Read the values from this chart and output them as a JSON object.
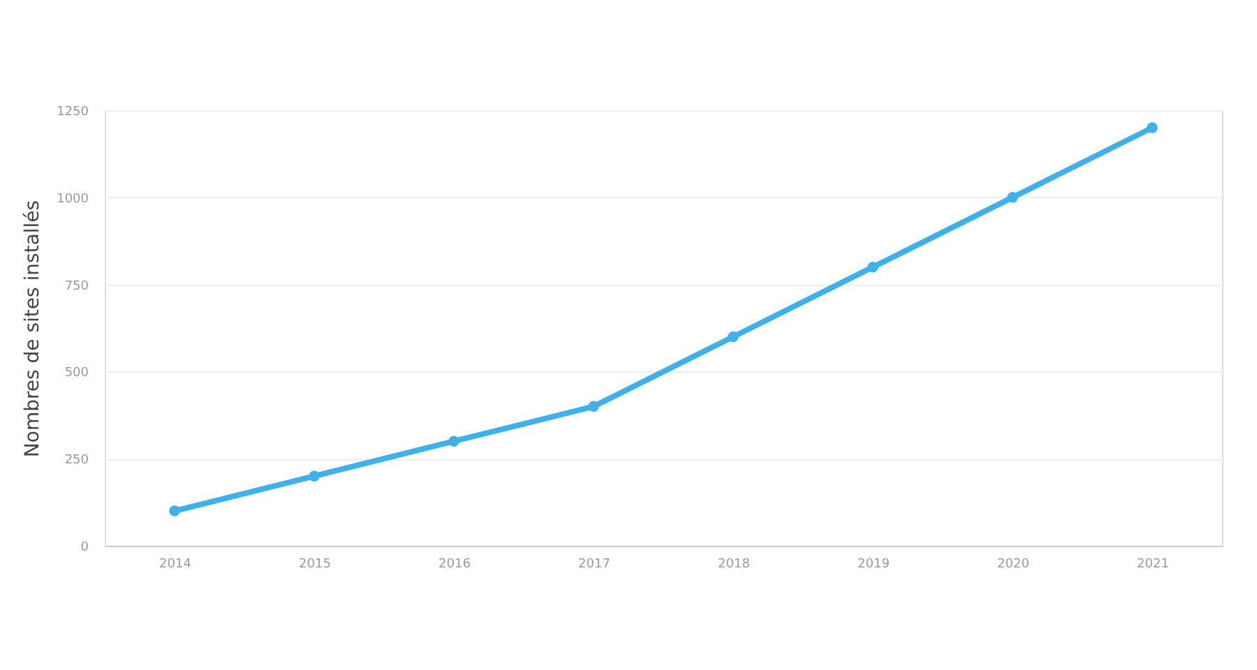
{
  "chart_data": {
    "type": "line",
    "ylabel": "Nombres de sites installés",
    "categories": [
      "2014",
      "2015",
      "2016",
      "2017",
      "2018",
      "2019",
      "2020",
      "2021"
    ],
    "series": [
      {
        "color": "#3fb0ea",
        "values": [
          100,
          200,
          300,
          400,
          600,
          800,
          1000,
          1200
        ]
      }
    ],
    "ylim": [
      0,
      1250
    ],
    "yticks": [
      0,
      250,
      500,
      750,
      1000,
      1250
    ],
    "grid": "y",
    "marker": "circle"
  }
}
